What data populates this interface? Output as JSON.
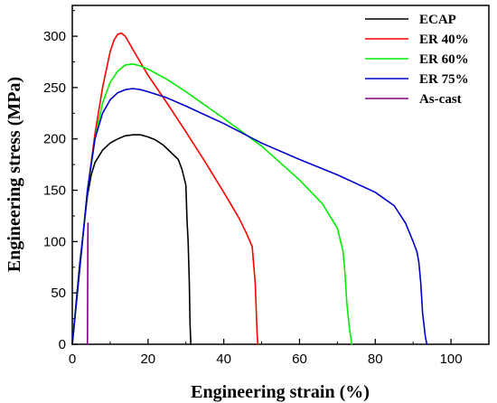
{
  "chart_data": {
    "type": "line",
    "title": "",
    "xlabel": "Engineering strain (%)",
    "ylabel": "Engineering stress (MPa)",
    "xlim": [
      0,
      110
    ],
    "ylim": [
      0,
      330
    ],
    "x_ticks": [
      0,
      20,
      40,
      60,
      80,
      100
    ],
    "y_ticks": [
      0,
      50,
      100,
      150,
      200,
      250,
      300
    ],
    "grid": false,
    "legend_position": "top-right",
    "series": [
      {
        "name": "ECAP",
        "color": "#000000",
        "x": [
          0,
          2,
          4,
          5,
          6,
          8,
          10,
          12,
          14,
          16,
          18,
          20,
          22,
          24,
          26,
          28,
          29,
          30,
          30.3,
          30.6,
          30.9,
          31.1,
          31.3
        ],
        "y": [
          0,
          80,
          145,
          165,
          177,
          189,
          196,
          200,
          203,
          204,
          204,
          202,
          199,
          194,
          187,
          180,
          170,
          155,
          120,
          100,
          60,
          20,
          0
        ]
      },
      {
        "name": "ER 40%",
        "color": "#ff0000",
        "x": [
          0,
          2,
          4,
          6,
          8,
          10,
          11,
          12,
          13,
          14,
          16,
          20,
          25,
          30,
          35,
          40,
          44,
          46,
          47.5,
          48.3,
          48.6,
          48.8,
          49
        ],
        "y": [
          0,
          75,
          150,
          205,
          250,
          285,
          296,
          302,
          303,
          300,
          287,
          262,
          235,
          207,
          178,
          148,
          123,
          108,
          95,
          60,
          30,
          10,
          0
        ]
      },
      {
        "name": "ER 60%",
        "color": "#00ee00",
        "x": [
          0,
          2,
          4,
          6,
          8,
          10,
          12,
          14,
          16,
          18,
          20,
          25,
          30,
          40,
          50,
          60,
          66,
          70,
          71.5,
          72,
          72.5,
          73.2,
          73.8
        ],
        "y": [
          0,
          75,
          150,
          200,
          235,
          255,
          266,
          272,
          273,
          271,
          268,
          258,
          246,
          220,
          193,
          160,
          137,
          113,
          90,
          70,
          40,
          15,
          0
        ]
      },
      {
        "name": "ER 75%",
        "color": "#0000cc",
        "x": [
          0,
          2,
          4,
          6,
          8,
          10,
          12,
          14,
          16,
          18,
          20,
          25,
          30,
          40,
          50,
          60,
          70,
          80,
          85,
          88,
          90,
          91,
          91.5,
          92,
          92.5,
          93.2,
          93.6
        ],
        "y": [
          0,
          75,
          150,
          200,
          225,
          238,
          245,
          248,
          249,
          248,
          246,
          240,
          232,
          215,
          196,
          180,
          165,
          148,
          135,
          118,
          100,
          90,
          80,
          60,
          30,
          8,
          0
        ]
      },
      {
        "name": "As-cast",
        "color": "#800080",
        "x": [
          4.0,
          4.05,
          4.1,
          4.15
        ],
        "y": [
          0,
          50,
          100,
          118
        ]
      }
    ]
  }
}
